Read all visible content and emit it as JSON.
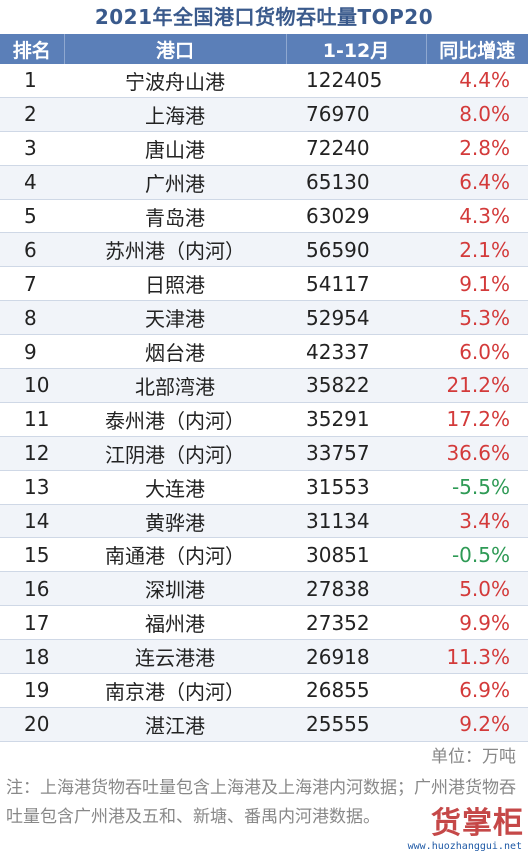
{
  "title": "2021年全国港口货物吞吐量TOP20",
  "headers": [
    "排名",
    "港口",
    "1-12月",
    "同比增速"
  ],
  "rows": [
    {
      "rank": "1",
      "port": "宁波舟山港",
      "volume": "122405",
      "growth": "4.4%"
    },
    {
      "rank": "2",
      "port": "上海港",
      "volume": "76970",
      "growth": "8.0%"
    },
    {
      "rank": "3",
      "port": "唐山港",
      "volume": "72240",
      "growth": "2.8%"
    },
    {
      "rank": "4",
      "port": "广州港",
      "volume": "65130",
      "growth": "6.4%"
    },
    {
      "rank": "5",
      "port": "青岛港",
      "volume": "63029",
      "growth": "4.3%"
    },
    {
      "rank": "6",
      "port": "苏州港（内河）",
      "volume": "56590",
      "growth": "2.1%"
    },
    {
      "rank": "7",
      "port": "日照港",
      "volume": "54117",
      "growth": "9.1%"
    },
    {
      "rank": "8",
      "port": "天津港",
      "volume": "52954",
      "growth": "5.3%"
    },
    {
      "rank": "9",
      "port": "烟台港",
      "volume": "42337",
      "growth": "6.0%"
    },
    {
      "rank": "10",
      "port": "北部湾港",
      "volume": "35822",
      "growth": "21.2%"
    },
    {
      "rank": "11",
      "port": "泰州港（内河）",
      "volume": "35291",
      "growth": "17.2%"
    },
    {
      "rank": "12",
      "port": "江阴港（内河）",
      "volume": "33757",
      "growth": "36.6%"
    },
    {
      "rank": "13",
      "port": "大连港",
      "volume": "31553",
      "growth": "-5.5%"
    },
    {
      "rank": "14",
      "port": "黄骅港",
      "volume": "31134",
      "growth": "3.4%"
    },
    {
      "rank": "15",
      "port": "南通港（内河）",
      "volume": "30851",
      "growth": "-0.5%"
    },
    {
      "rank": "16",
      "port": "深圳港",
      "volume": "27838",
      "growth": "5.0%"
    },
    {
      "rank": "17",
      "port": "福州港",
      "volume": "27352",
      "growth": "9.9%"
    },
    {
      "rank": "18",
      "port": "连云港港",
      "volume": "26918",
      "growth": "11.3%"
    },
    {
      "rank": "19",
      "port": "南京港（内河）",
      "volume": "26855",
      "growth": "6.9%"
    },
    {
      "rank": "20",
      "port": "湛江港",
      "volume": "25555",
      "growth": "9.2%"
    }
  ],
  "unit": "单位：万吨",
  "note": "注：上海港货物吞吐量包含上海港及上海港内河数据；广州港货物吞吐量包含广州港及五和、新塘、番禺内河港数据。",
  "watermark": {
    "text": "货掌柜",
    "url": "www.huozhanggui.net"
  },
  "colors": {
    "header_bg": "#5b7fb8",
    "title": "#3a5a8c",
    "positive": "#d33a3a",
    "negative": "#2e9a55"
  }
}
